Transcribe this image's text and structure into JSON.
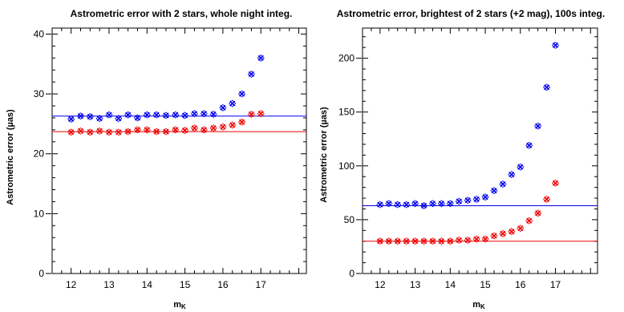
{
  "chart_data": [
    {
      "type": "scatter",
      "title": "Astrometric error with 2 stars, whole night integ.",
      "xlabel": "m",
      "xlabel_sub": "K",
      "ylabel": "Astrometric error (µas)",
      "xlim": [
        11.5,
        18.2
      ],
      "ylim": [
        0,
        41
      ],
      "xticks": [
        12,
        13,
        14,
        15,
        16,
        17
      ],
      "xtick_labels": [
        "12",
        "13",
        "14",
        "15",
        "16",
        "17"
      ],
      "yticks": [
        0,
        10,
        20,
        30,
        40
      ],
      "ytick_labels": [
        "0",
        "10",
        "20",
        "30",
        "40"
      ],
      "x": [
        12.0,
        12.25,
        12.5,
        12.75,
        13.0,
        13.25,
        13.5,
        13.75,
        14.0,
        14.25,
        14.5,
        14.75,
        15.0,
        15.25,
        15.5,
        15.75,
        16.0,
        16.25,
        16.5,
        16.75,
        17.0
      ],
      "series": [
        {
          "color": "#0000ee",
          "marker": "x",
          "values": [
            25.8,
            26.3,
            26.2,
            25.9,
            26.5,
            25.9,
            26.5,
            26.0,
            26.5,
            26.5,
            26.4,
            26.5,
            26.4,
            26.7,
            26.7,
            26.6,
            27.7,
            28.4,
            30.0,
            33.3,
            36.0
          ]
        },
        {
          "color": "#ee0000",
          "marker": "x",
          "values": [
            23.6,
            23.8,
            23.6,
            23.8,
            23.6,
            23.6,
            23.7,
            24.0,
            24.0,
            23.7,
            23.7,
            24.0,
            23.9,
            24.3,
            24.0,
            24.3,
            24.5,
            24.8,
            25.3,
            26.6,
            26.7
          ]
        }
      ],
      "hlines": [
        {
          "color": "#0000ee",
          "y": 26.3
        },
        {
          "color": "#ee0000",
          "y": 23.7
        }
      ]
    },
    {
      "type": "scatter",
      "title": "Astrometric error, brightest of 2 stars (+2 mag), 100s integ.",
      "xlabel": "m",
      "xlabel_sub": "K",
      "ylabel": "Astrometric error (µas)",
      "xlim": [
        11.5,
        18.2
      ],
      "ylim": [
        0,
        228
      ],
      "xticks": [
        12,
        13,
        14,
        15,
        16,
        17
      ],
      "xtick_labels": [
        "12",
        "13",
        "14",
        "15",
        "16",
        "17"
      ],
      "yticks": [
        0,
        50,
        100,
        150,
        200
      ],
      "ytick_labels": [
        "0",
        "50",
        "100",
        "150",
        "200"
      ],
      "x": [
        12.0,
        12.25,
        12.5,
        12.75,
        13.0,
        13.25,
        13.5,
        13.75,
        14.0,
        14.25,
        14.5,
        14.75,
        15.0,
        15.25,
        15.5,
        15.75,
        16.0,
        16.25,
        16.5,
        16.75,
        17.0
      ],
      "series": [
        {
          "color": "#0000ee",
          "marker": "x",
          "values": [
            64,
            65,
            64,
            64,
            65,
            63,
            65,
            65,
            65,
            67,
            68,
            69,
            71,
            77,
            83,
            92,
            99,
            119,
            137,
            173,
            212
          ]
        },
        {
          "color": "#ee0000",
          "marker": "x",
          "values": [
            30,
            30,
            30,
            30,
            30,
            30,
            30,
            30,
            30,
            31,
            31,
            32,
            32,
            35,
            37,
            39,
            42,
            49,
            56,
            69,
            84
          ]
        }
      ],
      "hlines": [
        {
          "color": "#0000ee",
          "y": 63
        },
        {
          "color": "#ee0000",
          "y": 30
        }
      ]
    }
  ]
}
